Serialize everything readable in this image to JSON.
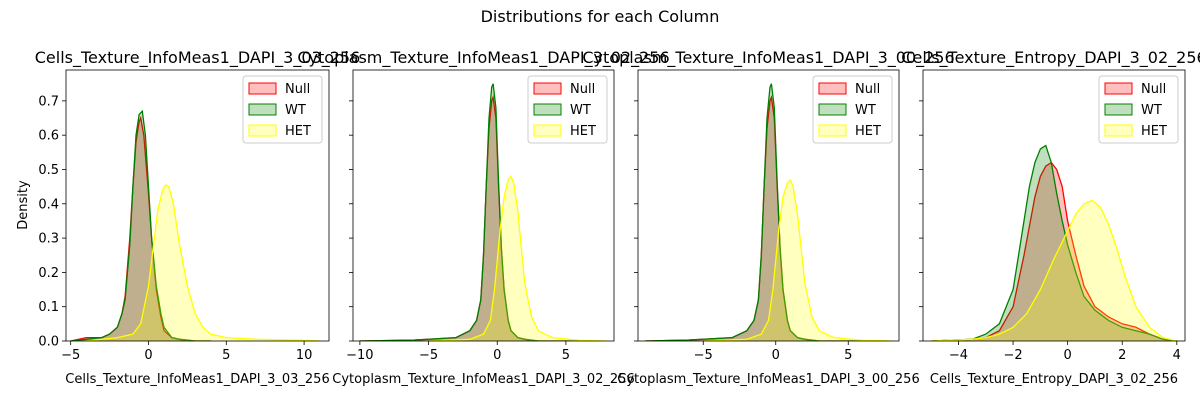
{
  "figure_title": "Distributions for each Column",
  "colors": {
    "Null": "#ff0000",
    "WT": "#008000",
    "HET": "#ffff00"
  },
  "chart_data": [
    {
      "type": "area",
      "title": "Cells_Texture_InfoMeas1_DAPI_3_03_256",
      "xlabel": "Cells_Texture_InfoMeas1_DAPI_3_03_256",
      "ylabel": "Density",
      "xlim": [
        -5.3,
        11.6
      ],
      "ylim": [
        0,
        0.79
      ],
      "xticks": [
        -5,
        0,
        5,
        10
      ],
      "yticks": [
        0.0,
        0.1,
        0.2,
        0.3,
        0.4,
        0.5,
        0.6,
        0.7
      ],
      "legend": "top-right",
      "series": [
        {
          "name": "Null",
          "x": [
            -5.0,
            -4.0,
            -3.0,
            -2.5,
            -2.0,
            -1.7,
            -1.5,
            -1.2,
            -1.0,
            -0.8,
            -0.6,
            -0.5,
            -0.3,
            0.0,
            0.2,
            0.5,
            0.8,
            1.0,
            1.5,
            2.0,
            3.0,
            4.0
          ],
          "y": [
            0,
            0.01,
            0.01,
            0.02,
            0.04,
            0.08,
            0.13,
            0.3,
            0.45,
            0.58,
            0.64,
            0.65,
            0.6,
            0.43,
            0.3,
            0.15,
            0.07,
            0.03,
            0.01,
            0.005,
            0,
            0
          ]
        },
        {
          "name": "WT",
          "x": [
            -5.0,
            -4.0,
            -3.0,
            -2.5,
            -2.0,
            -1.7,
            -1.5,
            -1.2,
            -1.0,
            -0.8,
            -0.6,
            -0.4,
            -0.2,
            0.0,
            0.2,
            0.5,
            0.8,
            1.0,
            1.5,
            2.0,
            3.0,
            4.0
          ],
          "y": [
            0,
            0.005,
            0.01,
            0.02,
            0.04,
            0.08,
            0.12,
            0.28,
            0.45,
            0.6,
            0.66,
            0.67,
            0.6,
            0.45,
            0.3,
            0.16,
            0.08,
            0.04,
            0.01,
            0.005,
            0,
            0
          ]
        },
        {
          "name": "HET",
          "x": [
            -4.0,
            -2.0,
            -1.0,
            -0.5,
            0.0,
            0.3,
            0.6,
            0.9,
            1.1,
            1.3,
            1.6,
            2.0,
            2.5,
            3.0,
            3.5,
            4.0,
            5.0,
            7.0,
            10.0,
            11.0
          ],
          "y": [
            0,
            0.01,
            0.02,
            0.05,
            0.16,
            0.27,
            0.38,
            0.44,
            0.455,
            0.45,
            0.4,
            0.28,
            0.16,
            0.08,
            0.04,
            0.02,
            0.01,
            0.005,
            0.002,
            0
          ]
        }
      ]
    },
    {
      "type": "area",
      "title": "Cytoplasm_Texture_InfoMeas1_DAPI_3_02_256",
      "xlabel": "Cytoplasm_Texture_InfoMeas1_DAPI_3_02_256",
      "ylabel": "",
      "xlim": [
        -10.5,
        8.5
      ],
      "ylim": [
        0,
        0.79
      ],
      "xticks": [
        -10,
        -5,
        0,
        5
      ],
      "yticks": [],
      "legend": "top-right",
      "series": [
        {
          "name": "Null",
          "x": [
            -10.0,
            -6.0,
            -3.0,
            -2.0,
            -1.5,
            -1.2,
            -1.0,
            -0.8,
            -0.6,
            -0.4,
            -0.3,
            -0.1,
            0.1,
            0.3,
            0.5,
            0.8,
            1.0,
            1.5,
            2.0,
            3.0,
            6.0
          ],
          "y": [
            0,
            0.003,
            0.01,
            0.03,
            0.06,
            0.12,
            0.25,
            0.45,
            0.62,
            0.7,
            0.71,
            0.65,
            0.45,
            0.27,
            0.15,
            0.06,
            0.03,
            0.01,
            0.005,
            0,
            0
          ]
        },
        {
          "name": "WT",
          "x": [
            -10.0,
            -6.0,
            -3.0,
            -2.0,
            -1.5,
            -1.2,
            -1.0,
            -0.8,
            -0.6,
            -0.4,
            -0.3,
            -0.1,
            0.1,
            0.3,
            0.5,
            0.8,
            1.0,
            1.5,
            2.0,
            3.0,
            6.0
          ],
          "y": [
            0,
            0.003,
            0.01,
            0.03,
            0.06,
            0.12,
            0.25,
            0.45,
            0.65,
            0.74,
            0.75,
            0.68,
            0.46,
            0.27,
            0.15,
            0.06,
            0.03,
            0.01,
            0.005,
            0,
            0
          ]
        },
        {
          "name": "HET",
          "x": [
            -5.0,
            -2.0,
            -1.0,
            -0.5,
            -0.2,
            0.2,
            0.5,
            0.8,
            1.0,
            1.2,
            1.5,
            1.8,
            2.0,
            2.5,
            3.0,
            4.0,
            6.0,
            8.0
          ],
          "y": [
            0,
            0.005,
            0.02,
            0.06,
            0.15,
            0.32,
            0.42,
            0.47,
            0.48,
            0.46,
            0.38,
            0.25,
            0.17,
            0.07,
            0.03,
            0.01,
            0.002,
            0
          ]
        }
      ]
    },
    {
      "type": "area",
      "title": "Cytoplasm_Texture_InfoMeas1_DAPI_3_00_256",
      "xlabel": "Cytoplasm_Texture_InfoMeas1_DAPI_3_00_256",
      "ylabel": "",
      "xlim": [
        -9.5,
        8.5
      ],
      "ylim": [
        0,
        0.79
      ],
      "xticks": [
        -5,
        0,
        5
      ],
      "yticks": [],
      "legend": "top-right",
      "series": [
        {
          "name": "Null",
          "x": [
            -9.0,
            -6.0,
            -3.0,
            -2.0,
            -1.5,
            -1.2,
            -1.0,
            -0.8,
            -0.6,
            -0.4,
            -0.3,
            -0.1,
            0.1,
            0.3,
            0.5,
            0.8,
            1.0,
            1.5,
            2.0,
            3.0,
            6.0
          ],
          "y": [
            0,
            0.003,
            0.01,
            0.03,
            0.06,
            0.12,
            0.25,
            0.45,
            0.62,
            0.7,
            0.71,
            0.65,
            0.45,
            0.27,
            0.15,
            0.06,
            0.03,
            0.01,
            0.005,
            0,
            0
          ]
        },
        {
          "name": "WT",
          "x": [
            -9.0,
            -6.0,
            -3.0,
            -2.0,
            -1.5,
            -1.2,
            -1.0,
            -0.8,
            -0.6,
            -0.4,
            -0.3,
            -0.1,
            0.1,
            0.3,
            0.5,
            0.8,
            1.0,
            1.5,
            2.0,
            3.0,
            6.0
          ],
          "y": [
            0,
            0.003,
            0.01,
            0.03,
            0.06,
            0.12,
            0.25,
            0.45,
            0.65,
            0.74,
            0.75,
            0.68,
            0.46,
            0.27,
            0.15,
            0.06,
            0.03,
            0.01,
            0.005,
            0,
            0
          ]
        },
        {
          "name": "HET",
          "x": [
            -5.0,
            -2.0,
            -1.0,
            -0.5,
            -0.2,
            0.2,
            0.5,
            0.8,
            1.0,
            1.2,
            1.5,
            1.8,
            2.0,
            2.5,
            3.0,
            4.0,
            6.0,
            8.0
          ],
          "y": [
            0,
            0.005,
            0.02,
            0.06,
            0.15,
            0.32,
            0.42,
            0.46,
            0.47,
            0.45,
            0.37,
            0.25,
            0.17,
            0.07,
            0.03,
            0.01,
            0.002,
            0
          ]
        }
      ]
    },
    {
      "type": "area",
      "title": "Cells_Texture_Entropy_DAPI_3_02_256",
      "xlabel": "Cells_Texture_Entropy_DAPI_3_02_256",
      "ylabel": "",
      "xlim": [
        -5.3,
        4.3
      ],
      "ylim": [
        0,
        0.79
      ],
      "xticks": [
        -4,
        -2,
        0,
        2,
        4
      ],
      "yticks": [],
      "legend": "top-right",
      "series": [
        {
          "name": "Null",
          "x": [
            -5.0,
            -3.5,
            -3.0,
            -2.5,
            -2.0,
            -1.6,
            -1.2,
            -1.0,
            -0.8,
            -0.6,
            -0.4,
            -0.2,
            0.0,
            0.3,
            0.6,
            1.0,
            1.5,
            2.0,
            2.5,
            3.0,
            3.5,
            4.0
          ],
          "y": [
            0,
            0.005,
            0.01,
            0.03,
            0.1,
            0.25,
            0.42,
            0.48,
            0.51,
            0.52,
            0.5,
            0.45,
            0.35,
            0.25,
            0.16,
            0.1,
            0.07,
            0.05,
            0.04,
            0.02,
            0.005,
            0
          ]
        },
        {
          "name": "WT",
          "x": [
            -5.0,
            -3.5,
            -3.0,
            -2.5,
            -2.0,
            -1.6,
            -1.4,
            -1.2,
            -1.0,
            -0.8,
            -0.6,
            -0.4,
            -0.2,
            0.0,
            0.3,
            0.6,
            1.0,
            1.5,
            2.0,
            2.5,
            3.0,
            3.5,
            4.0
          ],
          "y": [
            0,
            0.005,
            0.02,
            0.05,
            0.15,
            0.35,
            0.45,
            0.52,
            0.56,
            0.57,
            0.52,
            0.43,
            0.35,
            0.28,
            0.2,
            0.13,
            0.09,
            0.06,
            0.04,
            0.03,
            0.02,
            0.005,
            0
          ]
        },
        {
          "name": "HET",
          "x": [
            -5.0,
            -3.5,
            -3.0,
            -2.5,
            -2.0,
            -1.5,
            -1.0,
            -0.5,
            0.0,
            0.3,
            0.6,
            0.9,
            1.2,
            1.5,
            1.8,
            2.1,
            2.5,
            3.0,
            3.5,
            4.0
          ],
          "y": [
            0,
            0.005,
            0.01,
            0.02,
            0.04,
            0.08,
            0.15,
            0.24,
            0.32,
            0.37,
            0.4,
            0.41,
            0.39,
            0.34,
            0.27,
            0.19,
            0.1,
            0.04,
            0.01,
            0
          ]
        }
      ]
    }
  ]
}
